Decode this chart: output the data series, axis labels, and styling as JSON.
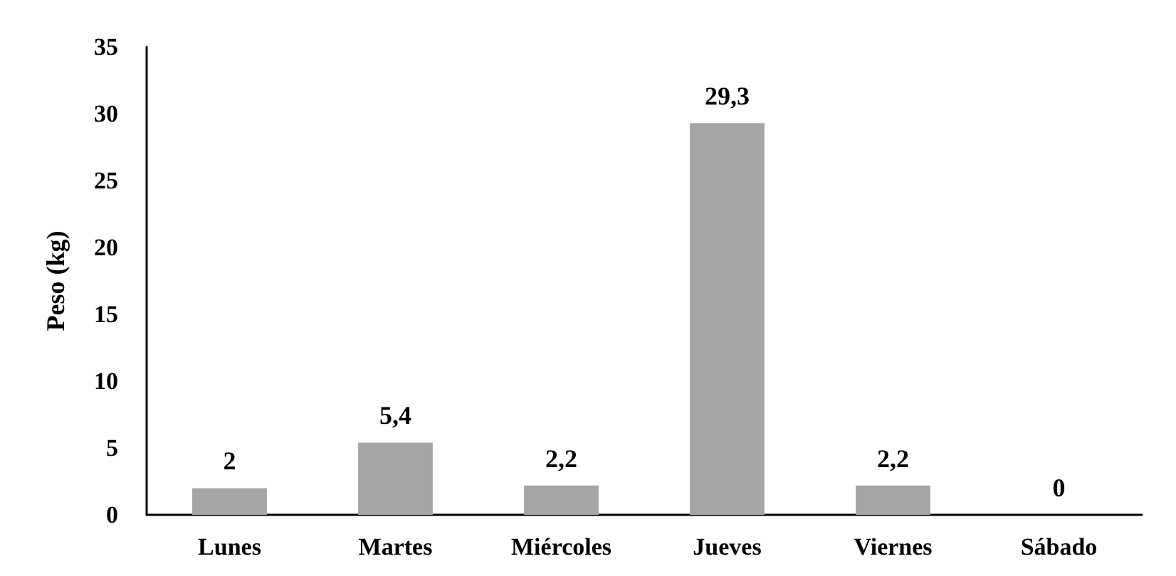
{
  "chart_data": {
    "type": "bar",
    "ylabel": "Peso (kg)",
    "categories": [
      "Lunes",
      "Martes",
      "Miércoles",
      "Jueves",
      "Viernes",
      "Sábado"
    ],
    "values": [
      2,
      5.4,
      2.2,
      29.3,
      2.2,
      0
    ],
    "value_labels": [
      "2",
      "5,4",
      "2,2",
      "29,3",
      "2,2",
      "0"
    ],
    "color": "#a5a5a5",
    "ylim": [
      0,
      35
    ],
    "yticks": [
      0,
      5,
      10,
      15,
      20,
      25,
      30,
      35
    ],
    "grid": false
  }
}
